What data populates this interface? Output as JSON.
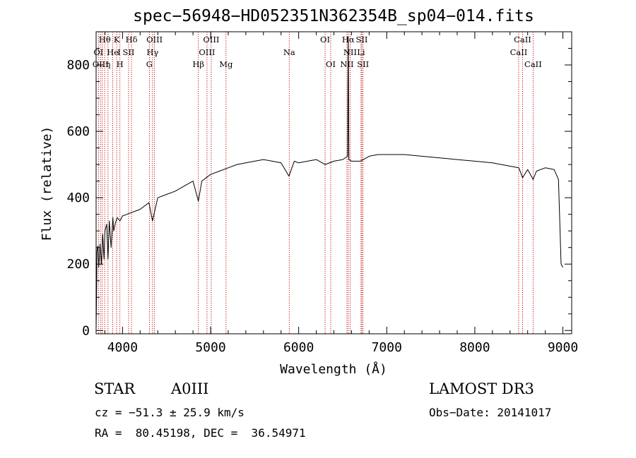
{
  "chart_data": {
    "type": "line",
    "title": "spec−56948−HD052351N362354B_sp04−014.fits",
    "xlabel": "Wavelength (Å)",
    "ylabel": "Flux (relative)",
    "xlim": [
      3700,
      9100
    ],
    "ylim": [
      -10,
      900
    ],
    "xticks": [
      4000,
      5000,
      6000,
      7000,
      8000,
      9000
    ],
    "yticks": [
      0,
      200,
      400,
      600,
      800
    ],
    "series": [
      {
        "name": "spectrum",
        "x": [
          3700,
          3705,
          3710,
          3720,
          3730,
          3745,
          3760,
          3775,
          3790,
          3800,
          3820,
          3835,
          3850,
          3870,
          3890,
          3900,
          3920,
          3940,
          3970,
          4000,
          4050,
          4100,
          4150,
          4200,
          4300,
          4340,
          4400,
          4500,
          4600,
          4700,
          4800,
          4861,
          4900,
          4950,
          5000,
          5100,
          5200,
          5300,
          5400,
          5500,
          5600,
          5700,
          5800,
          5890,
          5950,
          6000,
          6100,
          6200,
          6300,
          6400,
          6500,
          6555,
          6563,
          6570,
          6600,
          6700,
          6800,
          6900,
          7000,
          7200,
          7400,
          7600,
          7800,
          8000,
          8200,
          8400,
          8500,
          8542,
          8600,
          8662,
          8700,
          8800,
          8900,
          8950,
          8980,
          9000
        ],
        "y": [
          5,
          100,
          240,
          255,
          190,
          260,
          200,
          290,
          215,
          300,
          320,
          215,
          330,
          250,
          340,
          300,
          325,
          340,
          330,
          345,
          350,
          355,
          360,
          365,
          385,
          330,
          400,
          410,
          420,
          435,
          450,
          390,
          450,
          460,
          470,
          480,
          490,
          500,
          505,
          510,
          515,
          510,
          505,
          465,
          510,
          505,
          510,
          515,
          500,
          510,
          515,
          525,
          885,
          515,
          510,
          510,
          525,
          530,
          530,
          530,
          525,
          520,
          515,
          510,
          505,
          495,
          490,
          460,
          485,
          455,
          480,
          490,
          485,
          455,
          200,
          190
        ]
      }
    ],
    "line_labels": [
      {
        "text": "Hθ",
        "x": 3798,
        "row": 0
      },
      {
        "text": "K",
        "x": 3934,
        "row": 0
      },
      {
        "text": "Hδ",
        "x": 4102,
        "row": 0
      },
      {
        "text": "OIII",
        "x": 4363,
        "row": 0
      },
      {
        "text": "OIII",
        "x": 5007,
        "row": 0
      },
      {
        "text": "OI",
        "x": 6300,
        "row": 0
      },
      {
        "text": "Hα",
        "x": 6563,
        "row": 0
      },
      {
        "text": "SII",
        "x": 6717,
        "row": 0
      },
      {
        "text": "CaII",
        "x": 8542,
        "row": 0
      },
      {
        "text": "OI",
        "x": 3727,
        "row": 1
      },
      {
        "text": "He",
        "x": 3889,
        "row": 1
      },
      {
        "text": "I",
        "x": 3960,
        "row": 1
      },
      {
        "text": "SII",
        "x": 4069,
        "row": 1
      },
      {
        "text": "Hγ",
        "x": 4341,
        "row": 1
      },
      {
        "text": "OIII",
        "x": 4959,
        "row": 1
      },
      {
        "text": "Na",
        "x": 5893,
        "row": 1
      },
      {
        "text": "NII",
        "x": 6584,
        "row": 1
      },
      {
        "text": "Li",
        "x": 6708,
        "row": 1
      },
      {
        "text": "CaII",
        "x": 8498,
        "row": 1
      },
      {
        "text": "OIII",
        "x": 3750,
        "row": 2
      },
      {
        "text": "η",
        "x": 3835,
        "row": 2
      },
      {
        "text": "H",
        "x": 3970,
        "row": 2
      },
      {
        "text": "G",
        "x": 4305,
        "row": 2
      },
      {
        "text": "Hβ",
        "x": 4861,
        "row": 2
      },
      {
        "text": "Mg",
        "x": 5175,
        "row": 2
      },
      {
        "text": "OI",
        "x": 6364,
        "row": 2
      },
      {
        "text": "NII",
        "x": 6548,
        "row": 2
      },
      {
        "text": "SII",
        "x": 6731,
        "row": 2
      },
      {
        "text": "CaII",
        "x": 8662,
        "row": 2
      }
    ],
    "line_markers": [
      3727,
      3750,
      3770,
      3798,
      3835,
      3889,
      3934,
      3970,
      4069,
      4102,
      4305,
      4341,
      4363,
      4861,
      4959,
      5007,
      5175,
      5893,
      6300,
      6364,
      6548,
      6563,
      6584,
      6708,
      6717,
      6731,
      8498,
      8542,
      8662
    ],
    "colors": {
      "axis": "#000000",
      "spectrum": "#000000",
      "markers": "#c00000"
    }
  },
  "info": {
    "object_class": "STAR",
    "subclass": "A0III",
    "survey": "LAMOST DR3",
    "velocity": "cz = −51.3 ± 25.9 km/s",
    "obs_date": "Obs−Date: 20141017",
    "coords": "RA =  80.45198, DEC =  36.54971"
  }
}
